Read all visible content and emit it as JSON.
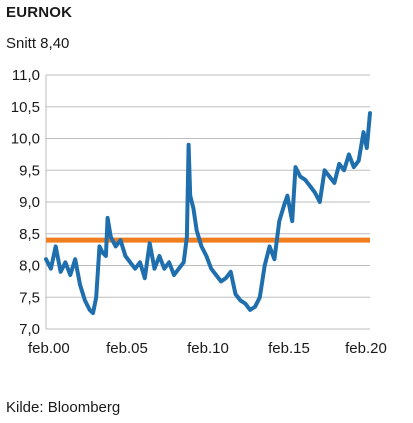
{
  "chart_data": {
    "type": "line",
    "title": "EURNOK",
    "subtitle": "Snitt 8,40",
    "source": "Kilde: Bloomberg",
    "ylim": [
      7.0,
      11.0
    ],
    "xlim": [
      2000.0,
      2020.0
    ],
    "y_ticks": [
      "7,0",
      "7,5",
      "8,0",
      "8,5",
      "9,0",
      "9,5",
      "10,0",
      "10,5",
      "11,0"
    ],
    "y_tick_values": [
      7.0,
      7.5,
      8.0,
      8.5,
      9.0,
      9.5,
      10.0,
      10.5,
      11.0
    ],
    "x_ticks": [
      "feb.00",
      "feb.05",
      "feb.10",
      "feb.15",
      "feb.20"
    ],
    "x_tick_values": [
      2000,
      2005,
      2010,
      2015,
      2020
    ],
    "grid": true,
    "line_color": "#1f6fae",
    "average_color": "#f07d1e",
    "series": [
      {
        "x": [
          2000.0,
          2000.3,
          2000.6,
          2000.9,
          2001.2,
          2001.5,
          2001.8,
          2002.1,
          2002.4,
          2002.7,
          2002.9,
          2003.1,
          2003.3,
          2003.5,
          2003.7,
          2003.8,
          2004.0,
          2004.3,
          2004.6,
          2004.9,
          2005.2,
          2005.5,
          2005.8,
          2006.1,
          2006.4,
          2006.7,
          2007.0,
          2007.3,
          2007.6,
          2007.9,
          2008.2,
          2008.5,
          2008.7,
          2008.8,
          2008.9,
          2009.1,
          2009.3,
          2009.6,
          2009.9,
          2010.2,
          2010.5,
          2010.8,
          2011.1,
          2011.4,
          2011.7,
          2012.0,
          2012.3,
          2012.6,
          2012.9,
          2013.2,
          2013.5,
          2013.8,
          2014.1,
          2014.4,
          2014.7,
          2014.9,
          2015.2,
          2015.4,
          2015.7,
          2016.0,
          2016.3,
          2016.6,
          2016.9,
          2017.2,
          2017.5,
          2017.8,
          2018.1,
          2018.4,
          2018.7,
          2019.0,
          2019.3,
          2019.6,
          2019.8,
          2020.0
        ],
        "values": [
          8.1,
          7.95,
          8.3,
          7.9,
          8.05,
          7.85,
          8.1,
          7.7,
          7.45,
          7.3,
          7.25,
          7.5,
          8.3,
          8.2,
          8.15,
          8.75,
          8.45,
          8.3,
          8.4,
          8.15,
          8.05,
          7.95,
          8.05,
          7.8,
          8.35,
          7.95,
          8.15,
          7.95,
          8.05,
          7.85,
          7.95,
          8.05,
          8.45,
          9.9,
          9.1,
          8.9,
          8.55,
          8.3,
          8.15,
          7.95,
          7.85,
          7.75,
          7.8,
          7.9,
          7.55,
          7.45,
          7.4,
          7.3,
          7.35,
          7.5,
          8.0,
          8.3,
          8.1,
          8.7,
          8.95,
          9.1,
          8.7,
          9.55,
          9.4,
          9.35,
          9.25,
          9.15,
          9.0,
          9.5,
          9.4,
          9.3,
          9.6,
          9.5,
          9.75,
          9.55,
          9.65,
          10.1,
          9.85,
          10.4
        ]
      }
    ],
    "average": 8.4
  }
}
